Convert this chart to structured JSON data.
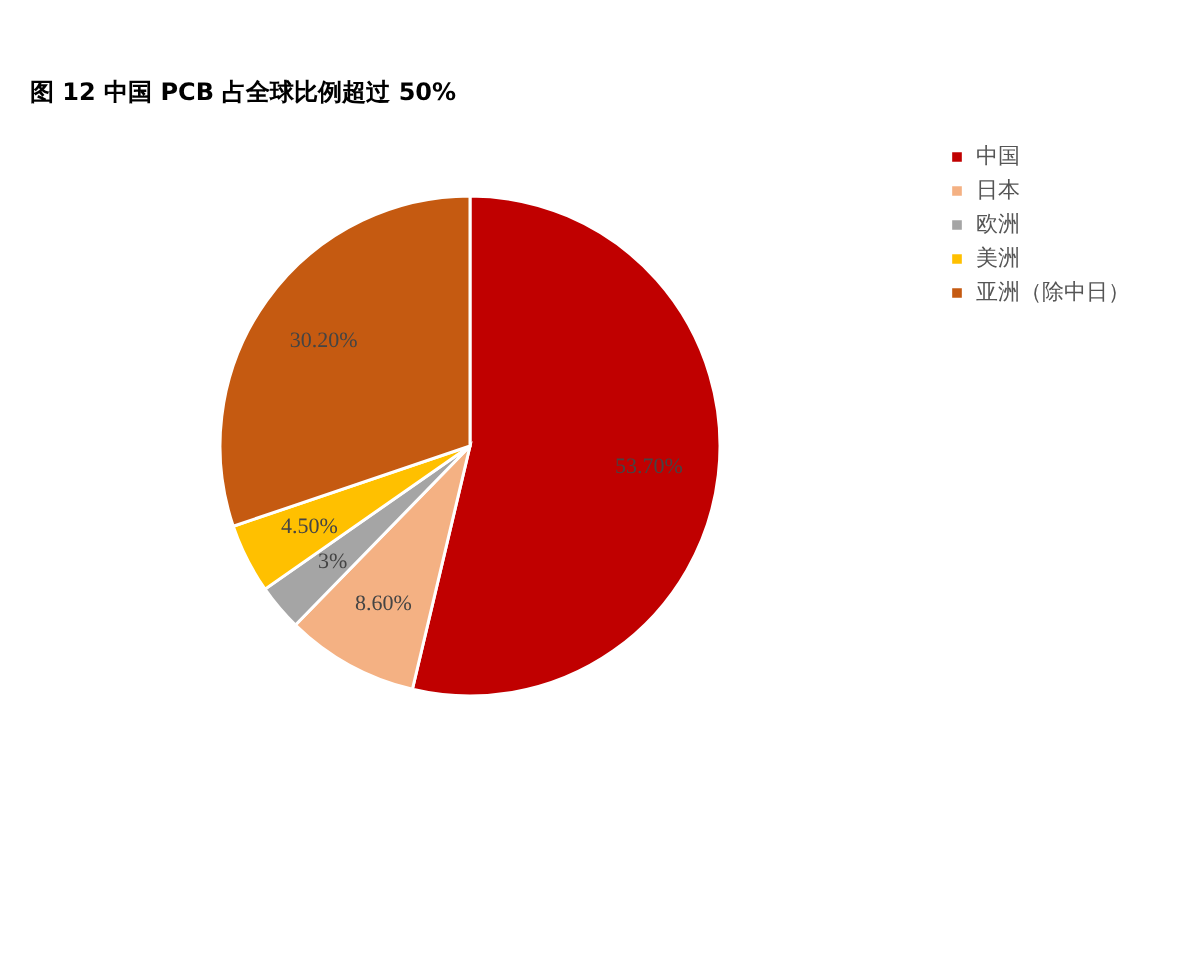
{
  "chart_data": {
    "type": "pie",
    "title": "图 12 中国 PCB 占全球比例超过 50%",
    "categories": [
      "中国",
      "日本",
      "欧洲",
      "美洲",
      "亚洲（除中日）"
    ],
    "values": [
      53.7,
      8.6,
      3,
      4.5,
      30.2
    ],
    "colors": [
      "#c00000",
      "#f4b183",
      "#a5a5a5",
      "#ffc000",
      "#c55a11"
    ],
    "value_labels": [
      "53.70%",
      "8.60%",
      "3%",
      "4.50%",
      "30.20%"
    ],
    "legend": "right"
  }
}
